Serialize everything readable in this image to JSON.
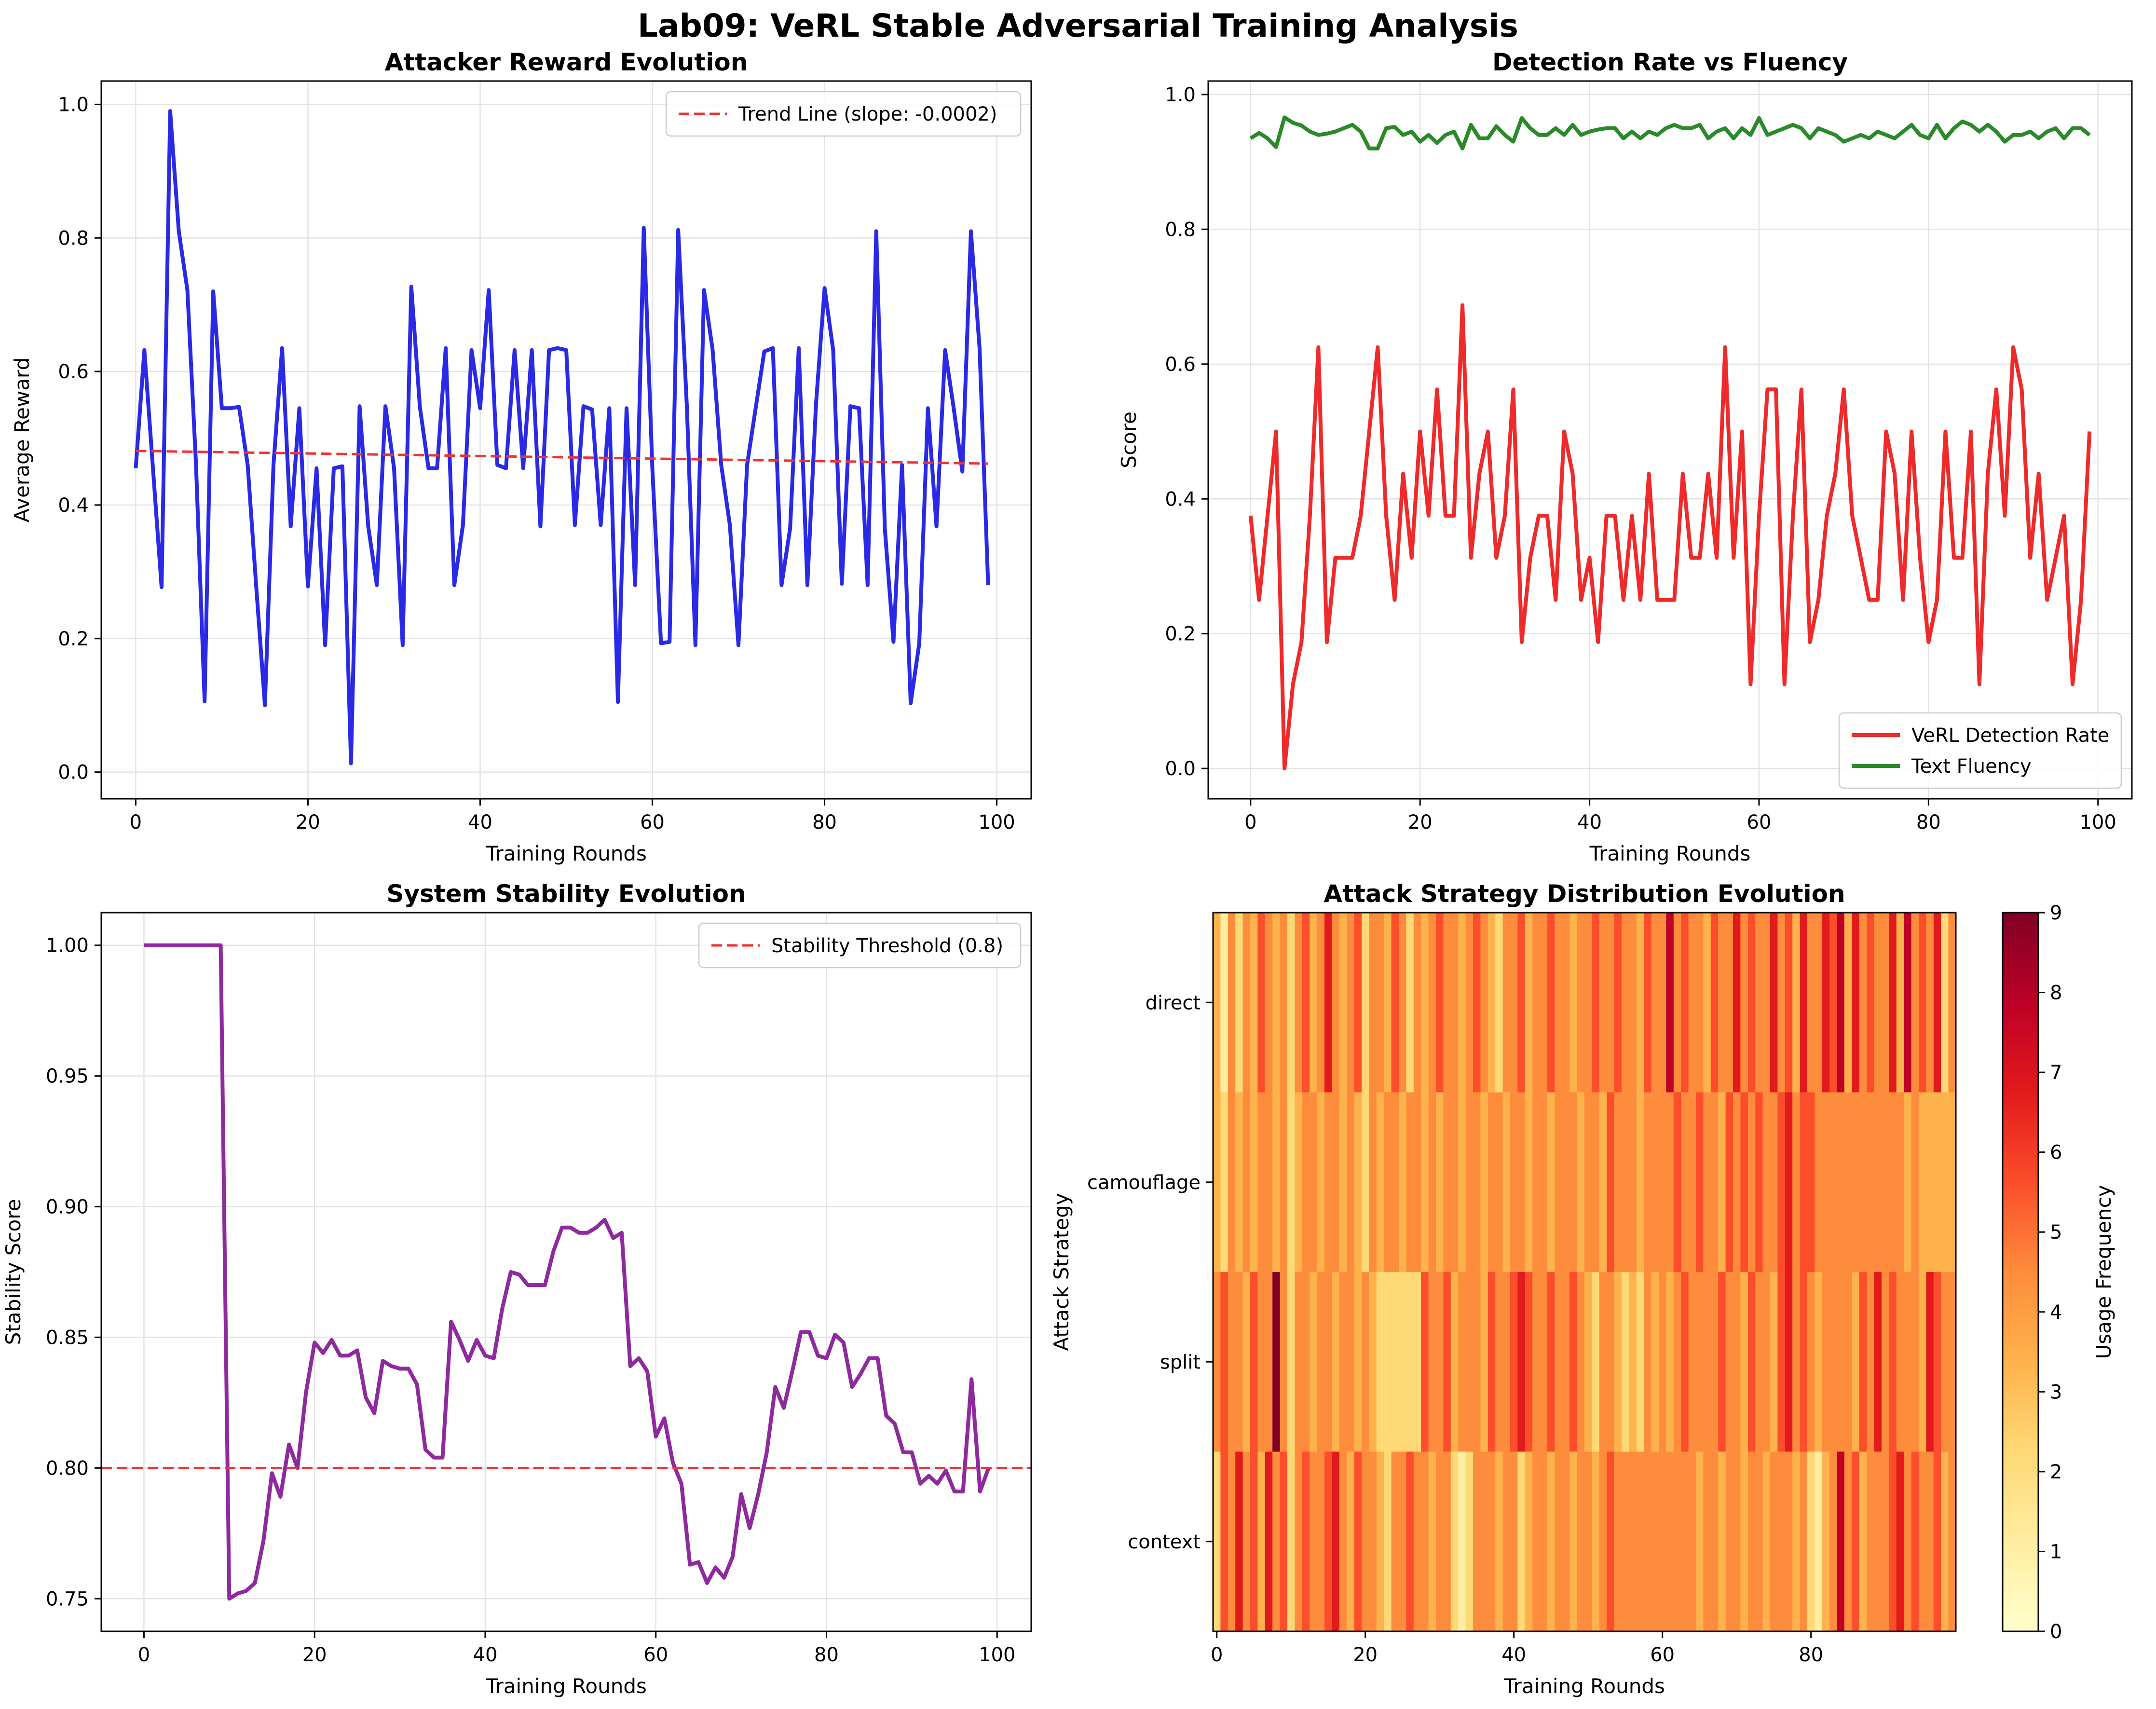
{
  "figure": {
    "title": "Lab09: VeRL Stable Adversarial Training Analysis"
  },
  "chart_data": [
    {
      "id": "reward",
      "type": "line",
      "title": "Attacker Reward Evolution",
      "xlabel": "Training Rounds",
      "ylabel": "Average Reward",
      "xlim": [
        -4,
        104
      ],
      "ylim": [
        -0.04,
        1.035
      ],
      "xticks": [
        0,
        20,
        40,
        60,
        80,
        100
      ],
      "yticks": [
        0.0,
        0.2,
        0.4,
        0.6,
        0.8,
        1.0
      ],
      "legend_position": "top-right",
      "grid": true,
      "series": [
        {
          "key": "reward",
          "color": "#2a2ae6",
          "values": [
            0.455,
            0.632,
            0.455,
            0.277,
            0.99,
            0.81,
            0.722,
            0.46,
            0.106,
            0.72,
            0.545,
            0.545,
            0.547,
            0.46,
            0.277,
            0.1,
            0.46,
            0.635,
            0.368,
            0.545,
            0.278,
            0.455,
            0.19,
            0.455,
            0.458,
            0.013,
            0.548,
            0.368,
            0.28,
            0.548,
            0.455,
            0.19,
            0.727,
            0.547,
            0.455,
            0.455,
            0.635,
            0.28,
            0.37,
            0.632,
            0.545,
            0.722,
            0.46,
            0.455,
            0.632,
            0.455,
            0.632,
            0.368,
            0.632,
            0.635,
            0.632,
            0.37,
            0.548,
            0.543,
            0.37,
            0.545,
            0.105,
            0.545,
            0.28,
            0.815,
            0.455,
            0.193,
            0.195,
            0.812,
            0.55,
            0.19,
            0.722,
            0.632,
            0.46,
            0.37,
            0.19,
            0.46,
            0.545,
            0.63,
            0.635,
            0.28,
            0.365,
            0.635,
            0.28,
            0.55,
            0.725,
            0.632,
            0.282,
            0.548,
            0.545,
            0.28,
            0.81,
            0.365,
            0.195,
            0.46,
            0.103,
            0.193,
            0.545,
            0.368,
            0.632,
            0.545,
            0.45,
            0.81,
            0.635,
            0.28
          ]
        },
        {
          "key": "trend",
          "name": "Trend Line (slope: -0.0002)",
          "color": "#ee3333",
          "style": "dashed",
          "x": [
            0,
            99
          ],
          "values": [
            0.481,
            0.462
          ]
        }
      ]
    },
    {
      "id": "detection",
      "type": "line",
      "title": "Detection Rate vs Fluency",
      "xlabel": "Training Rounds",
      "ylabel": "Score",
      "xlim": [
        -5,
        104
      ],
      "ylim": [
        -0.045,
        1.02
      ],
      "xticks": [
        0,
        20,
        40,
        60,
        80,
        100
      ],
      "yticks": [
        0.0,
        0.2,
        0.4,
        0.6,
        0.8,
        1.0
      ],
      "legend_position": "bottom-right",
      "grid": true,
      "series": [
        {
          "key": "detection",
          "name": "VeRL Detection Rate",
          "color": "#ee2a2a",
          "values": [
            0.375,
            0.25,
            0.375,
            0.5,
            0.0,
            0.125,
            0.1875,
            0.375,
            0.625,
            0.1875,
            0.3125,
            0.3125,
            0.3125,
            0.375,
            0.5,
            0.625,
            0.375,
            0.25,
            0.4375,
            0.3125,
            0.5,
            0.375,
            0.5625,
            0.375,
            0.375,
            0.6875,
            0.3125,
            0.4375,
            0.5,
            0.3125,
            0.375,
            0.5625,
            0.1875,
            0.3125,
            0.375,
            0.375,
            0.25,
            0.5,
            0.4375,
            0.25,
            0.3125,
            0.1875,
            0.375,
            0.375,
            0.25,
            0.375,
            0.25,
            0.4375,
            0.25,
            0.25,
            0.25,
            0.4375,
            0.3125,
            0.3125,
            0.4375,
            0.3125,
            0.625,
            0.3125,
            0.5,
            0.125,
            0.375,
            0.5625,
            0.5625,
            0.125,
            0.375,
            0.5625,
            0.1875,
            0.25,
            0.375,
            0.4375,
            0.5625,
            0.375,
            0.3125,
            0.25,
            0.25,
            0.5,
            0.4375,
            0.25,
            0.5,
            0.3125,
            0.1875,
            0.25,
            0.5,
            0.3125,
            0.3125,
            0.5,
            0.125,
            0.4375,
            0.5625,
            0.375,
            0.625,
            0.5625,
            0.3125,
            0.4375,
            0.25,
            0.3125,
            0.375,
            0.125,
            0.25,
            0.5
          ]
        },
        {
          "key": "fluency",
          "name": "Text Fluency",
          "color": "#2a8a2a",
          "values": [
            0.935,
            0.943,
            0.935,
            0.922,
            0.966,
            0.958,
            0.954,
            0.945,
            0.94,
            0.942,
            0.945,
            0.95,
            0.955,
            0.945,
            0.92,
            0.92,
            0.95,
            0.952,
            0.94,
            0.945,
            0.93,
            0.94,
            0.928,
            0.94,
            0.945,
            0.92,
            0.955,
            0.935,
            0.935,
            0.953,
            0.94,
            0.93,
            0.965,
            0.95,
            0.94,
            0.94,
            0.95,
            0.94,
            0.955,
            0.94,
            0.945,
            0.948,
            0.95,
            0.95,
            0.935,
            0.945,
            0.935,
            0.945,
            0.94,
            0.95,
            0.955,
            0.95,
            0.95,
            0.955,
            0.935,
            0.945,
            0.95,
            0.935,
            0.95,
            0.94,
            0.965,
            0.94,
            0.945,
            0.95,
            0.955,
            0.95,
            0.935,
            0.95,
            0.945,
            0.94,
            0.93,
            0.935,
            0.94,
            0.935,
            0.945,
            0.94,
            0.935,
            0.945,
            0.955,
            0.94,
            0.935,
            0.955,
            0.935,
            0.95,
            0.96,
            0.955,
            0.945,
            0.955,
            0.945,
            0.93,
            0.94,
            0.94,
            0.945,
            0.935,
            0.945,
            0.95,
            0.935,
            0.95,
            0.95,
            0.94
          ]
        }
      ]
    },
    {
      "id": "stability",
      "type": "line",
      "title": "System Stability Evolution",
      "xlabel": "Training Rounds",
      "ylabel": "Stability Score",
      "xlim": [
        -5,
        104
      ],
      "ylim": [
        0.7375,
        1.0125
      ],
      "xticks": [
        0,
        20,
        40,
        60,
        80,
        100
      ],
      "yticks": [
        0.75,
        0.8,
        0.85,
        0.9,
        0.95,
        1.0
      ],
      "legend_position": "top-right",
      "grid": true,
      "series": [
        {
          "key": "stability",
          "color": "#8e2a9e",
          "values": [
            1.0,
            1.0,
            1.0,
            1.0,
            1.0,
            1.0,
            1.0,
            1.0,
            1.0,
            1.0,
            0.75,
            0.752,
            0.753,
            0.756,
            0.772,
            0.798,
            0.789,
            0.809,
            0.8,
            0.829,
            0.848,
            0.844,
            0.849,
            0.843,
            0.843,
            0.845,
            0.827,
            0.821,
            0.841,
            0.839,
            0.838,
            0.838,
            0.832,
            0.807,
            0.804,
            0.804,
            0.856,
            0.849,
            0.841,
            0.849,
            0.843,
            0.842,
            0.861,
            0.875,
            0.874,
            0.87,
            0.87,
            0.87,
            0.883,
            0.892,
            0.892,
            0.89,
            0.89,
            0.892,
            0.895,
            0.888,
            0.89,
            0.839,
            0.842,
            0.837,
            0.812,
            0.819,
            0.802,
            0.794,
            0.763,
            0.764,
            0.756,
            0.762,
            0.758,
            0.766,
            0.79,
            0.777,
            0.79,
            0.806,
            0.831,
            0.823,
            0.837,
            0.852,
            0.852,
            0.843,
            0.842,
            0.851,
            0.848,
            0.831,
            0.836,
            0.842,
            0.842,
            0.82,
            0.817,
            0.806,
            0.806,
            0.794,
            0.797,
            0.794,
            0.799,
            0.791,
            0.791,
            0.834,
            0.791,
            0.8
          ]
        },
        {
          "key": "threshold",
          "name": "Stability Threshold (0.8)",
          "color": "#ee3333",
          "style": "dashed",
          "x": [
            -5,
            104
          ],
          "values": [
            0.8,
            0.8
          ]
        }
      ]
    },
    {
      "id": "strategy",
      "type": "heatmap",
      "title": "Attack Strategy Distribution Evolution",
      "xlabel": "Training Rounds",
      "ylabel": "Attack Strategy",
      "xlim": [
        -0.5,
        99.5
      ],
      "xticks": [
        0,
        20,
        40,
        60,
        80
      ],
      "categories": [
        "direct",
        "camouflage",
        "split",
        "context"
      ],
      "colorbar": {
        "label": "Usage Frequency",
        "min": 0,
        "max": 9,
        "ticks": [
          0,
          1,
          2,
          3,
          4,
          5,
          6,
          7,
          8,
          9
        ]
      },
      "colormap": [
        "#ffffcc",
        "#ffeda0",
        "#fed976",
        "#feb24c",
        "#fd8d3c",
        "#fc4e2a",
        "#e31a1c",
        "#bd0026",
        "#800026"
      ],
      "rows": [
        [
          3,
          1,
          4,
          2,
          5,
          3,
          6,
          4,
          3,
          5,
          2,
          4,
          6,
          3,
          5,
          7,
          4,
          3,
          5,
          6,
          2,
          4,
          5,
          3,
          6,
          4,
          2,
          5,
          3,
          4,
          6,
          5,
          4,
          3,
          5,
          6,
          4,
          3,
          2,
          5,
          4,
          6,
          3,
          5,
          4,
          6,
          5,
          4,
          3,
          5,
          4,
          6,
          5,
          4,
          6,
          5,
          4,
          3,
          6,
          4,
          5,
          8,
          4,
          6,
          5,
          4,
          3,
          6,
          5,
          4,
          7,
          5,
          6,
          4,
          5,
          7,
          5,
          6,
          3,
          7,
          5,
          4,
          7,
          6,
          8,
          3,
          7,
          5,
          6,
          4,
          5,
          7,
          3,
          8,
          5,
          6,
          4,
          7,
          2,
          4
        ],
        [
          3,
          2,
          4,
          3,
          5,
          3,
          4,
          5,
          3,
          4,
          2,
          3,
          5,
          4,
          3,
          4,
          5,
          3,
          4,
          3,
          2,
          4,
          3,
          5,
          4,
          3,
          4,
          5,
          3,
          4,
          3,
          4,
          5,
          3,
          4,
          5,
          3,
          4,
          4,
          3,
          5,
          4,
          3,
          4,
          5,
          3,
          4,
          5,
          4,
          3,
          4,
          5,
          3,
          6,
          4,
          5,
          4,
          3,
          5,
          4,
          5,
          4,
          6,
          5,
          4,
          6,
          4,
          5,
          3,
          6,
          4,
          6,
          5,
          6,
          4,
          5,
          6,
          7,
          5,
          6,
          6,
          4,
          5,
          4,
          4,
          4,
          4,
          4,
          4,
          4,
          4,
          4,
          4,
          3,
          4,
          3,
          3,
          3,
          3,
          3
        ],
        [
          5,
          6,
          4,
          5,
          3,
          6,
          4,
          5,
          9,
          4,
          2,
          4,
          5,
          3,
          4,
          5,
          3,
          4,
          5,
          3,
          4,
          3,
          2,
          2,
          2,
          2,
          2,
          2,
          6,
          4,
          5,
          6,
          3,
          4,
          5,
          4,
          3,
          6,
          4,
          5,
          6,
          7,
          6,
          5,
          4,
          6,
          5,
          4,
          6,
          5,
          3,
          2,
          4,
          5,
          3,
          2,
          3,
          2,
          4,
          3,
          5,
          3,
          4,
          6,
          5,
          4,
          5,
          4,
          6,
          5,
          4,
          3,
          6,
          5,
          4,
          3,
          6,
          7,
          5,
          6,
          4,
          3,
          5,
          4,
          5,
          4,
          3,
          6,
          4,
          7,
          5,
          6,
          4,
          5,
          5,
          3,
          7,
          6,
          4,
          5
        ],
        [
          2,
          6,
          5,
          7,
          4,
          6,
          3,
          7,
          5,
          6,
          2,
          5,
          6,
          4,
          5,
          6,
          7,
          5,
          3,
          6,
          4,
          5,
          3,
          2,
          4,
          5,
          6,
          4,
          5,
          3,
          4,
          5,
          2,
          1,
          2,
          4,
          5,
          4,
          3,
          5,
          4,
          2,
          3,
          4,
          5,
          3,
          4,
          5,
          3,
          5,
          4,
          3,
          5,
          6,
          4,
          5,
          5,
          5,
          5,
          5,
          5,
          5,
          5,
          5,
          5,
          3,
          5,
          4,
          3,
          5,
          4,
          3,
          5,
          4,
          3,
          5,
          4,
          5,
          3,
          4,
          2,
          1,
          3,
          4,
          8,
          5,
          6,
          3,
          4,
          5,
          4,
          6,
          7,
          5,
          6,
          4,
          5,
          6,
          3,
          4
        ]
      ]
    }
  ]
}
